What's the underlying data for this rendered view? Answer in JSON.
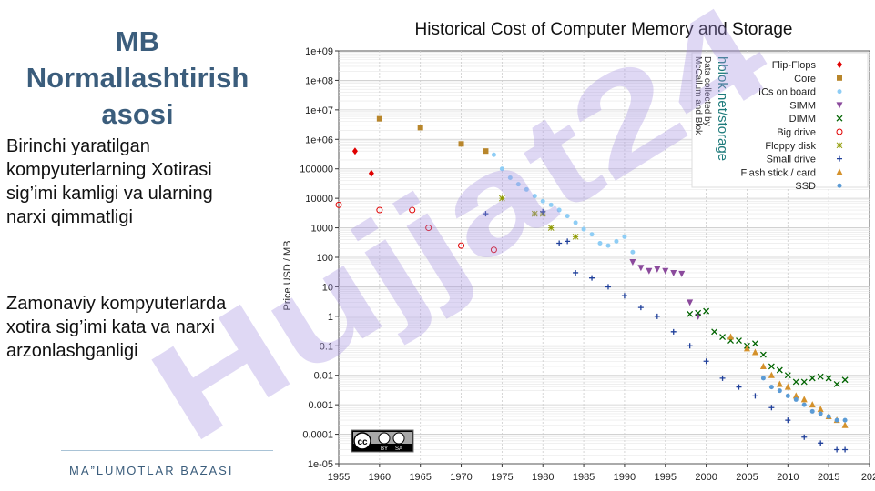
{
  "slide": {
    "title_line1": "MB",
    "title_line2": "Normallashtirish",
    "title_line3": "asosi",
    "paragraph1": "Birinchi yaratilgan kompyuterlarning Xotirasi sig’imi kamligi va ularning narxi qimmatligi",
    "paragraph2": "Zamonaviy kompyuterlarda xotira sig’imi kata va narxi arzonlashganligi",
    "footer": "MA”LUMOTLAR BAZASI"
  },
  "watermark": {
    "text": "Hujjat24",
    "color": "#a38fe0"
  },
  "chart_data": {
    "type": "scatter",
    "title": "Historical Cost of Computer Memory and Storage",
    "xlabel": "",
    "ylabel": "Price USD / MB",
    "xlim": [
      1955,
      2020
    ],
    "ylim_log10": [
      -5,
      9
    ],
    "x_ticks": [
      "1955",
      "1960",
      "1965",
      "1970",
      "1975",
      "1980",
      "1985",
      "1990",
      "1995",
      "2000",
      "2005",
      "2010",
      "2015",
      "202"
    ],
    "y_ticks": [
      "1e+09",
      "1e+08",
      "1e+07",
      "1e+06",
      "100000",
      "10000",
      "1000",
      "100",
      "10",
      "1",
      "0.1",
      "0.01",
      "0.001",
      "0.0001",
      "1e-05"
    ],
    "source_main": "hblok.net/storage",
    "source_line1": "Data collected by",
    "source_line2": "McCallum and Blok",
    "license": [
      "cc",
      "BY",
      "SA"
    ],
    "series": [
      {
        "name": "Flip-Flops",
        "color": "#e00000",
        "marker": "diamond",
        "points": [
          [
            1957,
            400000
          ],
          [
            1959,
            70000
          ]
        ]
      },
      {
        "name": "Core",
        "color": "#b8862b",
        "marker": "square",
        "points": [
          [
            1960,
            5000000
          ],
          [
            1965,
            2500000
          ],
          [
            1970,
            700000
          ],
          [
            1973,
            400000
          ]
        ]
      },
      {
        "name": "ICs on board",
        "color": "#8ecdf5",
        "marker": "dot",
        "points": [
          [
            1974,
            300000
          ],
          [
            1975,
            100000
          ],
          [
            1976,
            50000
          ],
          [
            1977,
            30000
          ],
          [
            1978,
            20000
          ],
          [
            1979,
            12000
          ],
          [
            1980,
            8000
          ],
          [
            1981,
            6000
          ],
          [
            1982,
            4000
          ],
          [
            1983,
            2500
          ],
          [
            1984,
            1500
          ],
          [
            1985,
            900
          ],
          [
            1986,
            600
          ],
          [
            1987,
            300
          ],
          [
            1988,
            250
          ],
          [
            1989,
            350
          ],
          [
            1990,
            500
          ],
          [
            1991,
            150
          ]
        ]
      },
      {
        "name": "SIMM",
        "color": "#8b4a9c",
        "marker": "triangle-down",
        "points": [
          [
            1991,
            70
          ],
          [
            1992,
            45
          ],
          [
            1993,
            35
          ],
          [
            1994,
            40
          ],
          [
            1995,
            35
          ],
          [
            1996,
            30
          ],
          [
            1997,
            28
          ],
          [
            1998,
            3
          ],
          [
            1999,
            1
          ]
        ]
      },
      {
        "name": "DIMM",
        "color": "#006400",
        "marker": "x",
        "points": [
          [
            1998,
            1.2
          ],
          [
            1999,
            1.3
          ],
          [
            2000,
            1.5
          ],
          [
            2001,
            0.3
          ],
          [
            2002,
            0.2
          ],
          [
            2003,
            0.15
          ],
          [
            2004,
            0.15
          ],
          [
            2005,
            0.1
          ],
          [
            2006,
            0.12
          ],
          [
            2007,
            0.05
          ],
          [
            2008,
            0.02
          ],
          [
            2009,
            0.015
          ],
          [
            2010,
            0.01
          ],
          [
            2011,
            0.006
          ],
          [
            2012,
            0.006
          ],
          [
            2013,
            0.008
          ],
          [
            2014,
            0.009
          ],
          [
            2015,
            0.008
          ],
          [
            2016,
            0.005
          ],
          [
            2017,
            0.007
          ]
        ]
      },
      {
        "name": "Big drive",
        "color": "#e00000",
        "marker": "circle",
        "points": [
          [
            1955,
            6000
          ],
          [
            1960,
            4000
          ],
          [
            1964,
            4000
          ],
          [
            1966,
            1000
          ],
          [
            1970,
            250
          ],
          [
            1974,
            180
          ]
        ]
      },
      {
        "name": "Floppy disk",
        "color": "#8f9a00",
        "marker": "star",
        "points": [
          [
            1975,
            10000
          ],
          [
            1979,
            3000
          ],
          [
            1980,
            3000
          ],
          [
            1981,
            1000
          ],
          [
            1984,
            500
          ]
        ]
      },
      {
        "name": "Small drive",
        "color": "#1f3f9a",
        "marker": "plus",
        "points": [
          [
            1973,
            3000
          ],
          [
            1980,
            3500
          ],
          [
            1982,
            300
          ],
          [
            1983,
            350
          ],
          [
            1984,
            30
          ],
          [
            1986,
            20
          ],
          [
            1988,
            10
          ],
          [
            1990,
            5
          ],
          [
            1992,
            2
          ],
          [
            1994,
            1
          ],
          [
            1996,
            0.3
          ],
          [
            1998,
            0.1
          ],
          [
            2000,
            0.03
          ],
          [
            2002,
            0.008
          ],
          [
            2004,
            0.004
          ],
          [
            2006,
            0.002
          ],
          [
            2008,
            0.0008
          ],
          [
            2010,
            0.0003
          ],
          [
            2012,
            8e-05
          ],
          [
            2014,
            5e-05
          ],
          [
            2016,
            3e-05
          ],
          [
            2017,
            3e-05
          ]
        ]
      },
      {
        "name": "Flash stick / card",
        "color": "#d4912b",
        "marker": "triangle",
        "points": [
          [
            2003,
            0.2
          ],
          [
            2005,
            0.08
          ],
          [
            2006,
            0.06
          ],
          [
            2007,
            0.02
          ],
          [
            2008,
            0.01
          ],
          [
            2009,
            0.005
          ],
          [
            2010,
            0.004
          ],
          [
            2011,
            0.002
          ],
          [
            2012,
            0.0015
          ],
          [
            2013,
            0.001
          ],
          [
            2014,
            0.0007
          ],
          [
            2015,
            0.0004
          ],
          [
            2016,
            0.0003
          ],
          [
            2017,
            0.0002
          ]
        ]
      },
      {
        "name": "SSD",
        "color": "#5b9bd5",
        "marker": "dot",
        "points": [
          [
            2007,
            0.008
          ],
          [
            2008,
            0.004
          ],
          [
            2009,
            0.003
          ],
          [
            2010,
            0.002
          ],
          [
            2011,
            0.0015
          ],
          [
            2012,
            0.001
          ],
          [
            2013,
            0.0006
          ],
          [
            2014,
            0.0005
          ],
          [
            2015,
            0.0004
          ],
          [
            2016,
            0.0003
          ],
          [
            2017,
            0.0003
          ]
        ]
      }
    ]
  }
}
